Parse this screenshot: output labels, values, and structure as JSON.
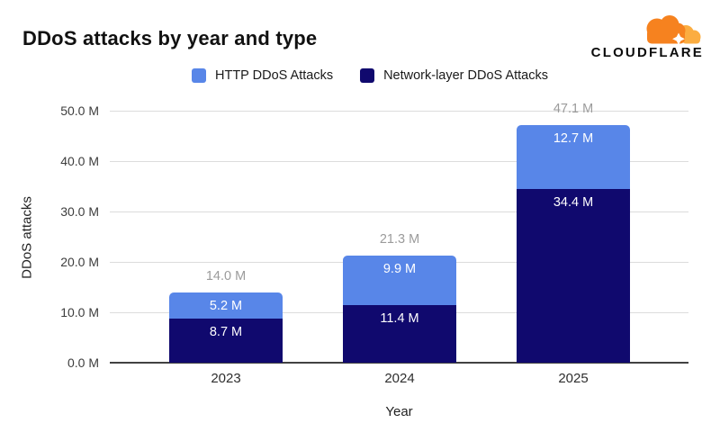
{
  "header": {
    "title": "DDoS attacks by year and type",
    "logo_text": "CLOUDFLARE"
  },
  "colors": {
    "http_blue": "#5886E8",
    "network_navy": "#10096E",
    "total_label_gray": "#9B9B9B",
    "grid_line": "#DCDCDC",
    "axis_line": "#424242",
    "cloud_orange": "#F6821F",
    "cloud_light_orange": "#FBAD41"
  },
  "legend": {
    "items": [
      {
        "label": "HTTP DDoS Attacks",
        "color": "#5886E8"
      },
      {
        "label": "Network-layer DDoS Attacks",
        "color": "#10096E"
      }
    ]
  },
  "chart_data": {
    "type": "bar",
    "stacked": true,
    "title": "DDoS attacks by year and type",
    "xlabel": "Year",
    "ylabel": "DDoS attacks",
    "categories": [
      "2023",
      "2024",
      "2025"
    ],
    "series": [
      {
        "name": "HTTP DDoS Attacks",
        "color": "#5886E8",
        "values": [
          5.2,
          9.9,
          12.7
        ],
        "value_labels": [
          "5.2 M",
          "9.9 M",
          "12.7 M"
        ]
      },
      {
        "name": "Network-layer DDoS Attacks",
        "color": "#10096E",
        "values": [
          8.7,
          11.4,
          34.4
        ],
        "value_labels": [
          "8.7 M",
          "11.4 M",
          "34.4 M"
        ]
      }
    ],
    "stack_order_bottom_to_top": [
      "Network-layer DDoS Attacks",
      "HTTP DDoS Attacks"
    ],
    "totals": [
      14.0,
      21.3,
      47.1
    ],
    "total_labels": [
      "14.0 M",
      "21.3 M",
      "47.1 M"
    ],
    "ylim": [
      0,
      50
    ],
    "yticks": [
      0,
      10,
      20,
      30,
      40,
      50
    ],
    "ytick_labels": [
      "0.0 M",
      "10.0 M",
      "20.0 M",
      "30.0 M",
      "40.0 M",
      "50.0 M"
    ],
    "grid": true,
    "legend_position": "top"
  }
}
